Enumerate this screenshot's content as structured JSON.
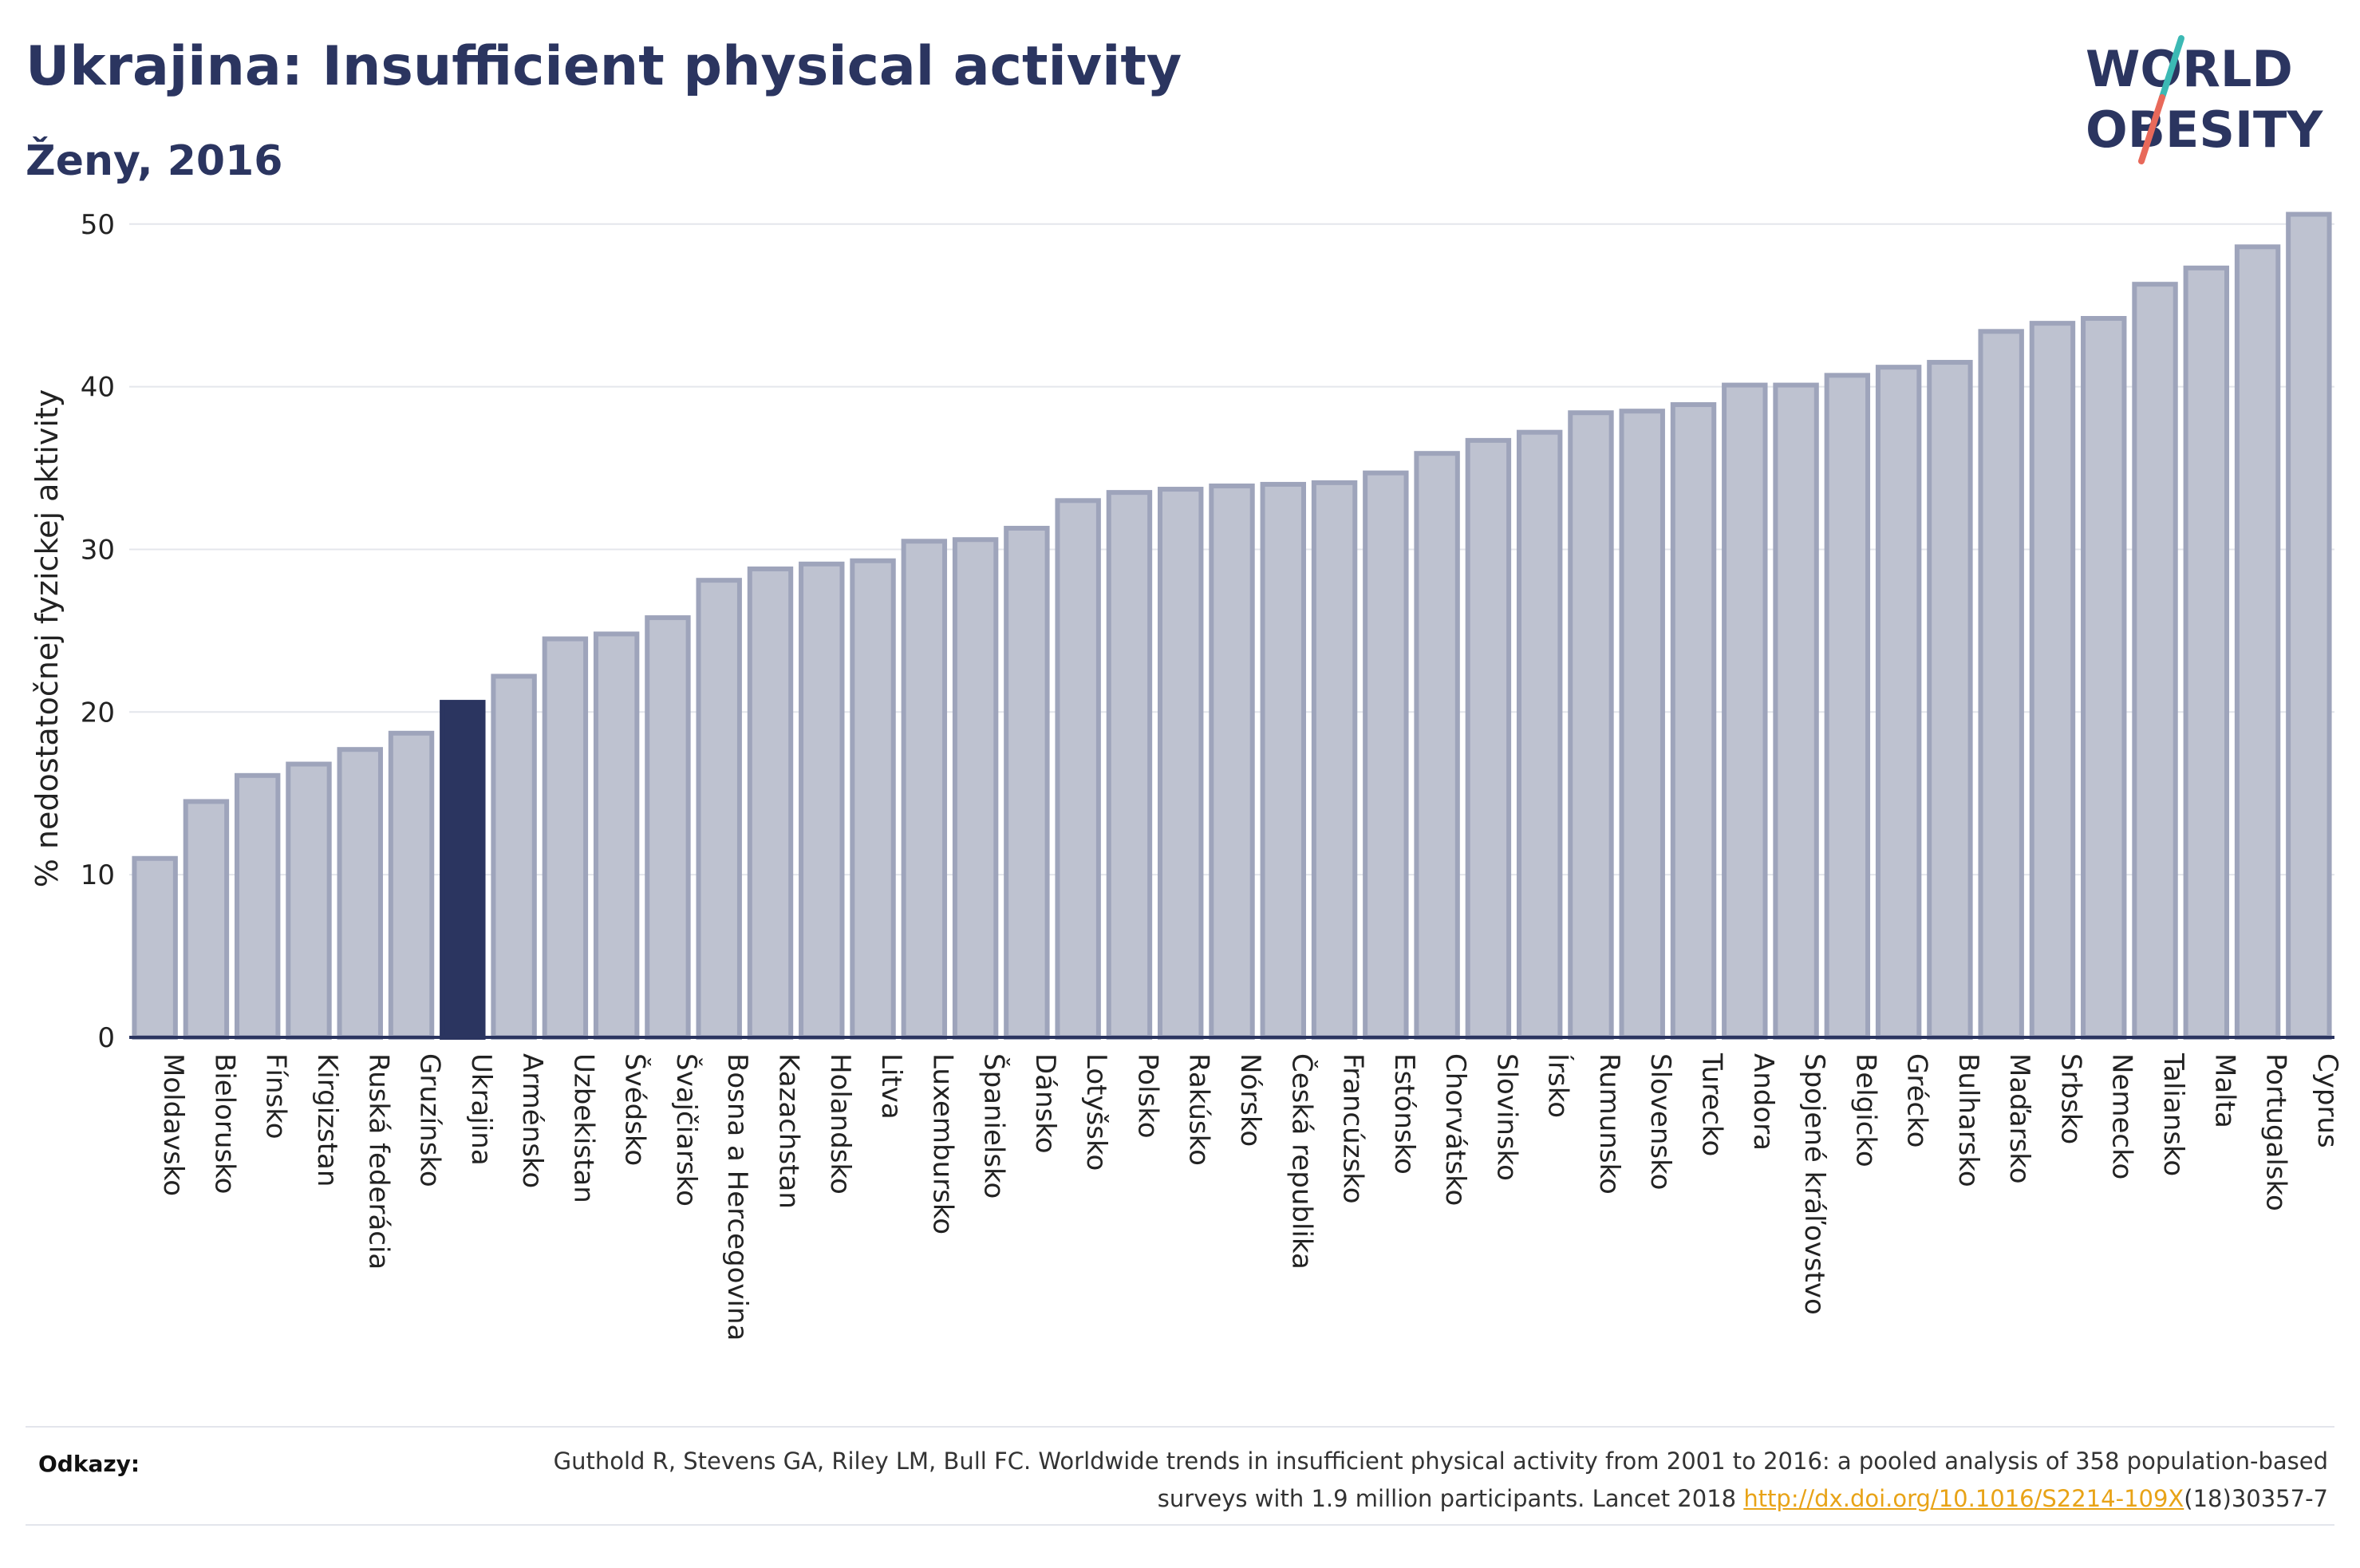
{
  "title": "Ukrajina: Insufficient physical activity",
  "subtitle": "Ženy, 2016",
  "logo": {
    "line1": "WORLD",
    "line2": "OBESITY",
    "slash_top_color": "#3cb9b4",
    "slash_bottom_color": "#e8695a"
  },
  "colors": {
    "bar_fill": "#bec2d0",
    "bar_stroke": "#9ea4bb",
    "highlight_fill": "#2b3560",
    "axis": "#2b3560",
    "grid": "#e4e6ec",
    "text": "#2b3560"
  },
  "chart_data": {
    "type": "bar",
    "ylabel": "% nedostatočnej fyzickej aktivity",
    "ylim": [
      0,
      52
    ],
    "yticks": [
      0,
      10,
      20,
      30,
      40,
      50
    ],
    "grid": true,
    "highlight": "Ukrajina",
    "categories": [
      "Moldavsko",
      "Bielorusko",
      "Fínsko",
      "Kirgizstan",
      "Ruská federácia",
      "Gruzínsko",
      "Ukrajina",
      "Arménsko",
      "Uzbekistan",
      "Švédsko",
      "Švajčiarsko",
      "Bosna a Hercegovina",
      "Kazachstan",
      "Holandsko",
      "Litva",
      "Luxembursko",
      "Španielsko",
      "Dánsko",
      "Lotyšsko",
      "Polsko",
      "Rakúsko",
      "Nórsko",
      "Česká republika",
      "Francúzsko",
      "Estónsko",
      "Chorvátsko",
      "Slovinsko",
      "Írsko",
      "Rumunsko",
      "Slovensko",
      "Turecko",
      "Andora",
      "Spojené kráľovstvo",
      "Belgicko",
      "Grécko",
      "Bulharsko",
      "Maďarsko",
      "Srbsko",
      "Nemecko",
      "Taliansko",
      "Malta",
      "Portugalsko",
      "Cyprus"
    ],
    "values": [
      11.0,
      14.5,
      16.1,
      16.8,
      17.7,
      18.7,
      20.6,
      22.2,
      24.5,
      24.8,
      25.8,
      28.1,
      28.8,
      29.1,
      29.3,
      30.5,
      30.6,
      31.3,
      33.0,
      33.5,
      33.7,
      33.9,
      34.0,
      34.1,
      34.7,
      35.9,
      36.7,
      37.2,
      38.4,
      38.5,
      38.9,
      40.1,
      40.1,
      40.7,
      41.2,
      41.5,
      43.4,
      43.9,
      44.2,
      46.3,
      47.3,
      48.6,
      50.6
    ]
  },
  "references": {
    "label": "Odkazy:",
    "text_before": "Guthold R, Stevens GA, Riley LM, Bull FC. Worldwide trends in insufficient physical activity from 2001 to 2016: a pooled analysis of 358 population-based surveys with 1.9 million participants. Lancet 2018 ",
    "link": "http://dx.doi.org/10.1016/S2214-109X",
    "text_after": "(18)30357-7"
  }
}
